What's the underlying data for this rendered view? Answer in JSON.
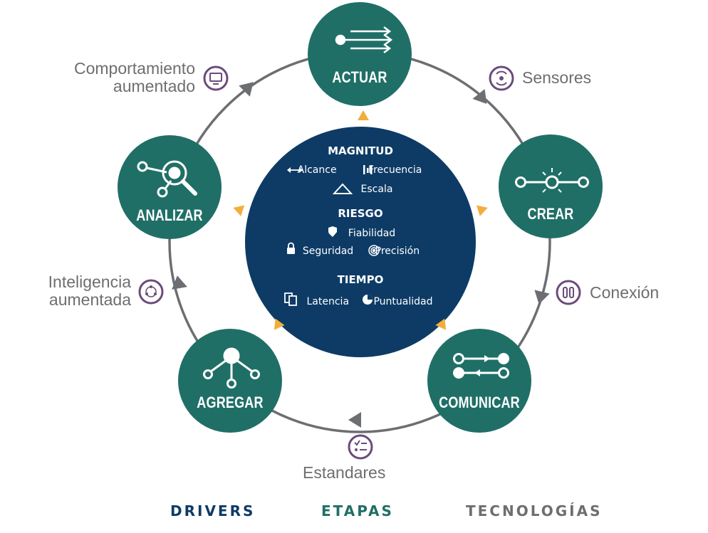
{
  "center": {
    "magnitud": {
      "title": "MAGNITUD",
      "items": [
        "Alcance",
        "Frecuencia",
        "Escala"
      ]
    },
    "riesgo": {
      "title": "RIESGO",
      "items": [
        "Fiabilidad",
        "Seguridad",
        "Precisión"
      ]
    },
    "tiempo": {
      "title": "TIEMPO",
      "items": [
        "Latencia",
        "Puntualidad"
      ]
    }
  },
  "stages": {
    "actuar": "ACTUAR",
    "crear": "CREAR",
    "comunicar": "COMUNICAR",
    "agregar": "AGREGAR",
    "analizar": "ANALIZAR"
  },
  "technologies": {
    "comportamiento": [
      "Comportamiento",
      "aumentado"
    ],
    "sensores": "Sensores",
    "conexion": "Conexión",
    "estandares": "Estandares",
    "inteligencia": [
      "Inteligencia",
      "aumentada"
    ]
  },
  "legend": {
    "drivers": "DRIVERS",
    "etapas": "ETAPAS",
    "tecnologias": "TECNOLOGÍAS"
  },
  "colors": {
    "teal": "#1f6f67",
    "navy": "#0d3b66",
    "purple": "#6b4b7c",
    "gray": "#6d6e71",
    "amber": "#f2ae3a",
    "ring": "#6d6e71"
  },
  "icons": {
    "actuar": "arrows-out-icon",
    "crear": "light-node-icon",
    "comunicar": "bidirectional-link-icon",
    "agregar": "tree-aggregate-icon",
    "analizar": "magnifier-network-icon",
    "comportamiento": "monitor-icon",
    "sensores": "sensor-waves-icon",
    "conexion": "connection-icon",
    "estandares": "checklist-icon",
    "inteligencia": "network-ring-icon"
  }
}
